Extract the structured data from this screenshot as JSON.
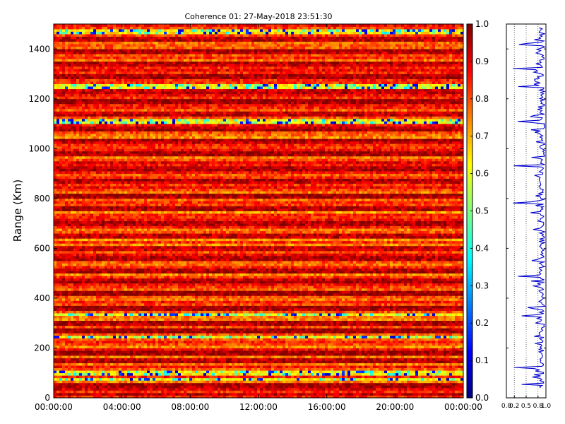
{
  "chart_data": {
    "type": "heatmap",
    "title": "Coherence 01: 27-May-2018 23:51:30",
    "ylabel": "Range (Km)",
    "xlabel": "",
    "x_tick_labels": [
      "00:00:00",
      "04:00:00",
      "08:00:00",
      "12:00:00",
      "16:00:00",
      "20:00:00",
      "00:00:00"
    ],
    "x_tick_hours": [
      0,
      4,
      8,
      12,
      16,
      20,
      24
    ],
    "xlim_hours": [
      0,
      24
    ],
    "y_ticks": [
      0,
      200,
      400,
      600,
      800,
      1000,
      1200,
      1400
    ],
    "ylim": [
      0,
      1500
    ],
    "colorbar": {
      "colormap": "jet",
      "range": [
        0.0,
        1.0
      ],
      "ticks": [
        "0.0",
        "0.1",
        "0.2",
        "0.3",
        "0.4",
        "0.5",
        "0.6",
        "0.7",
        "0.8",
        "0.9",
        "1.0"
      ]
    },
    "side_profile": {
      "type": "line",
      "color": "#0000cc",
      "x_tick_labels": [
        "0.0",
        "0.2",
        "0.5",
        "0.8",
        "1.0"
      ],
      "x_tick_values": [
        0.0,
        0.2,
        0.5,
        0.8,
        1.0
      ],
      "xlim": [
        0,
        1
      ],
      "grid": true,
      "low_dips_km": [
        55,
        120,
        330,
        365,
        490,
        780,
        930,
        1110,
        1250,
        1320,
        1420
      ]
    },
    "low_coherence_rows_km": [
      75,
      100,
      245,
      335,
      1110,
      1250,
      1470
    ],
    "high_coherence_rows_km": [
      15,
      50,
      150,
      180,
      270,
      300,
      360,
      420,
      470,
      510,
      560,
      600,
      650,
      700,
      760,
      810,
      870,
      920,
      980,
      1030,
      1080,
      1140,
      1190,
      1230,
      1290,
      1340,
      1390,
      1440
    ]
  }
}
